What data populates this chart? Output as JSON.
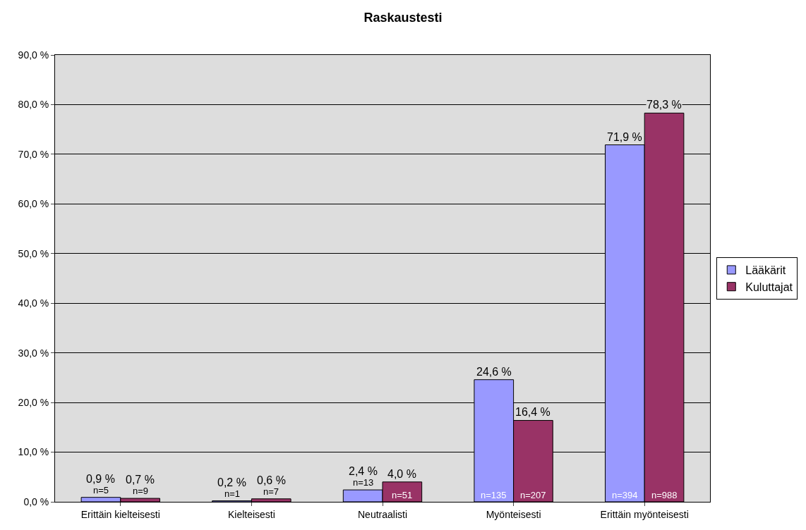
{
  "chart_data": {
    "type": "bar",
    "title": "Raskaustesti",
    "categories": [
      "Erittäin kielteisesti",
      "Kielteisesti",
      "Neutraalisti",
      "Myönteisesti",
      "Erittäin myönteisesti"
    ],
    "series": [
      {
        "name": "Lääkärit",
        "color": "#9999ff",
        "values": [
          0.9,
          0.2,
          2.4,
          24.6,
          71.9
        ],
        "value_labels": [
          "0,9 %",
          "0,2 %",
          "2,4 %",
          "24,6 %",
          "71,9 %"
        ]
      },
      {
        "name": "Kuluttajat",
        "color": "#993366",
        "values": [
          0.7,
          0.6,
          4.0,
          16.4,
          78.3
        ],
        "value_labels": [
          "0,7 %",
          "0,6 %",
          "4,0 %",
          "16,4 %",
          "78,3 %"
        ]
      }
    ],
    "annotations": [
      "n=5",
      "n=9",
      "n=1",
      "n=7",
      "n=13",
      "n=51",
      "n=135",
      "n=207",
      "n=394",
      "n=988"
    ],
    "ylim": [
      0,
      90
    ],
    "yticks": [
      {
        "value": 0,
        "label": "0,0 %"
      },
      {
        "value": 10,
        "label": "10,0 %"
      },
      {
        "value": 20,
        "label": "20,0 %"
      },
      {
        "value": 30,
        "label": "30,0 %"
      },
      {
        "value": 40,
        "label": "40,0 %"
      },
      {
        "value": 50,
        "label": "50,0 %"
      },
      {
        "value": 60,
        "label": "60,0 %"
      },
      {
        "value": 70,
        "label": "70,0 %"
      },
      {
        "value": 80,
        "label": "80,0 %"
      },
      {
        "value": 90,
        "label": "90,0 %"
      }
    ],
    "grid": "y",
    "legend": "right"
  }
}
